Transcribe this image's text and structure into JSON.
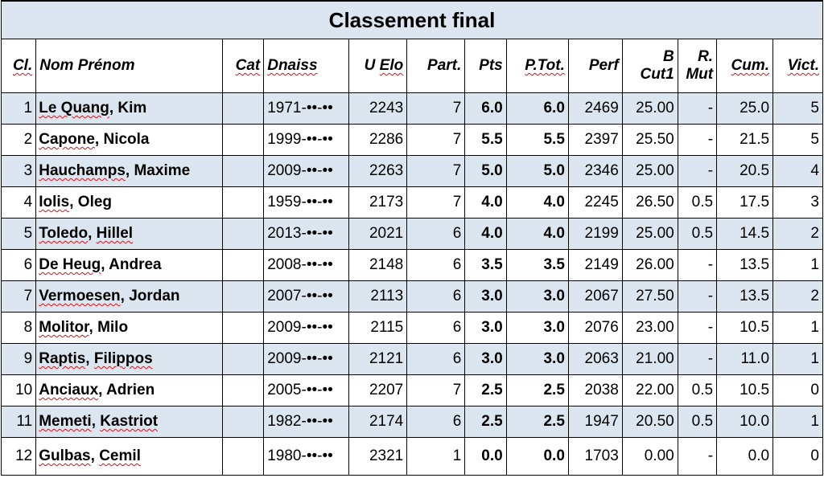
{
  "title": "Classement final",
  "columns": {
    "cl": "Cl.",
    "nom": "Nom Prénom",
    "cat": "Cat",
    "dnaiss": "Dnaiss",
    "uelo": "U Elo",
    "part": "Part.",
    "pts": "Pts",
    "ptot": "P.Tot.",
    "perf": "Perf",
    "bcut1_line1": "B",
    "bcut1_line2": "Cut1",
    "rmut_line1": "R.",
    "rmut_line2": "Mut",
    "cum": "Cum.",
    "vict": "Vict."
  },
  "rows": [
    {
      "cl": "1",
      "surname": "Le Quang",
      "first": "Kim",
      "cat": "",
      "dnaiss": "1971-••-••",
      "uelo": "2243",
      "part": "7",
      "pts": "6.0",
      "ptot": "6.0",
      "perf": "2469",
      "bcut1": "25.00",
      "rmut": "-",
      "cum": "25.0",
      "vict": "5"
    },
    {
      "cl": "2",
      "surname": "Capone",
      "first": "Nicola",
      "cat": "",
      "dnaiss": "1999-••-••",
      "uelo": "2286",
      "part": "7",
      "pts": "5.5",
      "ptot": "5.5",
      "perf": "2397",
      "bcut1": "25.50",
      "rmut": "-",
      "cum": "21.5",
      "vict": "5"
    },
    {
      "cl": "3",
      "surname": "Hauchamps",
      "first": "Maxime",
      "cat": "",
      "dnaiss": "2009-••-••",
      "uelo": "2263",
      "part": "7",
      "pts": "5.0",
      "ptot": "5.0",
      "perf": "2346",
      "bcut1": "25.00",
      "rmut": "-",
      "cum": "20.5",
      "vict": "4"
    },
    {
      "cl": "4",
      "surname": "Iolis",
      "first": "Oleg",
      "cat": "",
      "dnaiss": "1959-••-••",
      "uelo": "2173",
      "part": "7",
      "pts": "4.0",
      "ptot": "4.0",
      "perf": "2245",
      "bcut1": "26.50",
      "rmut": "0.5",
      "cum": "17.5",
      "vict": "3"
    },
    {
      "cl": "5",
      "surname": "Toledo",
      "first": "Hillel",
      "cat": "",
      "dnaiss": "2013-••-••",
      "uelo": "2021",
      "part": "6",
      "pts": "4.0",
      "ptot": "4.0",
      "perf": "2199",
      "bcut1": "25.00",
      "rmut": "0.5",
      "cum": "14.5",
      "vict": "2"
    },
    {
      "cl": "6",
      "surname": "De Heug",
      "first": "Andrea",
      "cat": "",
      "dnaiss": "2008-••-••",
      "uelo": "2148",
      "part": "6",
      "pts": "3.5",
      "ptot": "3.5",
      "perf": "2149",
      "bcut1": "26.00",
      "rmut": "-",
      "cum": "13.5",
      "vict": "1"
    },
    {
      "cl": "7",
      "surname": "Vermoesen",
      "first": "Jordan",
      "cat": "",
      "dnaiss": "2007-••-••",
      "uelo": "2113",
      "part": "6",
      "pts": "3.0",
      "ptot": "3.0",
      "perf": "2067",
      "bcut1": "27.50",
      "rmut": "-",
      "cum": "13.5",
      "vict": "2"
    },
    {
      "cl": "8",
      "surname": "Molitor",
      "first": "Milo",
      "cat": "",
      "dnaiss": "2009-••-••",
      "uelo": "2115",
      "part": "6",
      "pts": "3.0",
      "ptot": "3.0",
      "perf": "2076",
      "bcut1": "23.00",
      "rmut": "-",
      "cum": "10.5",
      "vict": "1"
    },
    {
      "cl": "9",
      "surname": "Raptis",
      "first": "Filippos",
      "cat": "",
      "dnaiss": "2009-••-••",
      "uelo": "2121",
      "part": "6",
      "pts": "3.0",
      "ptot": "3.0",
      "perf": "2063",
      "bcut1": "21.00",
      "rmut": "-",
      "cum": "11.0",
      "vict": "1"
    },
    {
      "cl": "10",
      "surname": "Anciaux",
      "first": "Adrien",
      "cat": "",
      "dnaiss": "2005-••-••",
      "uelo": "2207",
      "part": "7",
      "pts": "2.5",
      "ptot": "2.5",
      "perf": "2038",
      "bcut1": "22.00",
      "rmut": "0.5",
      "cum": "10.5",
      "vict": "0"
    },
    {
      "cl": "11",
      "surname": "Memeti",
      "first": "Kastriot",
      "cat": "",
      "dnaiss": "1982-••-••",
      "uelo": "2174",
      "part": "6",
      "pts": "2.5",
      "ptot": "2.5",
      "perf": "1947",
      "bcut1": "20.50",
      "rmut": "0.5",
      "cum": "10.0",
      "vict": "1"
    },
    {
      "cl": "12",
      "surname": "Gulbas",
      "first": "Cemil",
      "cat": "",
      "dnaiss": "1980-••-••",
      "uelo": "2321",
      "part": "1",
      "pts": "0.0",
      "ptot": "0.0",
      "perf": "1703",
      "bcut1": "0.00",
      "rmut": "-",
      "cum": "0.0",
      "vict": "0"
    }
  ]
}
